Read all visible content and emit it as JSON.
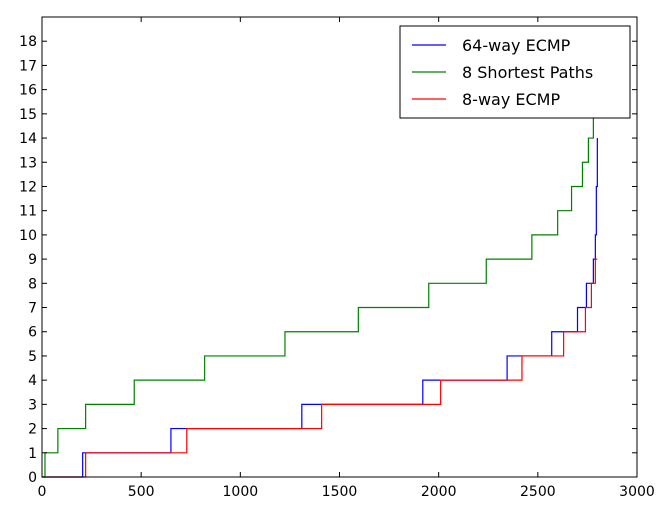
{
  "chart_data": {
    "type": "line",
    "title": "",
    "xlabel": "",
    "ylabel": "",
    "xlim": [
      0,
      3000
    ],
    "ylim": [
      0,
      19
    ],
    "x_ticks": [
      0,
      500,
      1000,
      1500,
      2000,
      2500,
      3000
    ],
    "y_ticks": [
      0,
      1,
      2,
      3,
      4,
      5,
      6,
      7,
      8,
      9,
      10,
      11,
      12,
      13,
      14,
      15,
      16,
      17,
      18
    ],
    "grid": false,
    "legend_position": "top-right",
    "step": "post",
    "series": [
      {
        "name": "64-way ECMP",
        "color": "#0000ff",
        "points": [
          [
            0,
            0
          ],
          [
            205,
            1
          ],
          [
            650,
            2
          ],
          [
            1310,
            3
          ],
          [
            1920,
            4
          ],
          [
            2345,
            5
          ],
          [
            2570,
            6
          ],
          [
            2700,
            7
          ],
          [
            2745,
            8
          ],
          [
            2780,
            9
          ],
          [
            2790,
            10
          ],
          [
            2795,
            12
          ],
          [
            2800,
            14
          ],
          [
            2800,
            14
          ]
        ]
      },
      {
        "name": "8 Shortest Paths",
        "color": "#008000",
        "points": [
          [
            0,
            0
          ],
          [
            15,
            1
          ],
          [
            80,
            2
          ],
          [
            220,
            3
          ],
          [
            465,
            4
          ],
          [
            820,
            5
          ],
          [
            1225,
            6
          ],
          [
            1595,
            7
          ],
          [
            1950,
            8
          ],
          [
            2240,
            9
          ],
          [
            2470,
            10
          ],
          [
            2600,
            11
          ],
          [
            2670,
            12
          ],
          [
            2725,
            13
          ],
          [
            2755,
            14
          ],
          [
            2780,
            15
          ],
          [
            2780,
            15
          ]
        ]
      },
      {
        "name": "8-way ECMP",
        "color": "#ff0000",
        "points": [
          [
            0,
            0
          ],
          [
            220,
            1
          ],
          [
            730,
            2
          ],
          [
            1410,
            3
          ],
          [
            2010,
            4
          ],
          [
            2420,
            5
          ],
          [
            2630,
            6
          ],
          [
            2740,
            7
          ],
          [
            2770,
            8
          ],
          [
            2790,
            9
          ],
          [
            2800,
            9
          ]
        ]
      }
    ]
  }
}
